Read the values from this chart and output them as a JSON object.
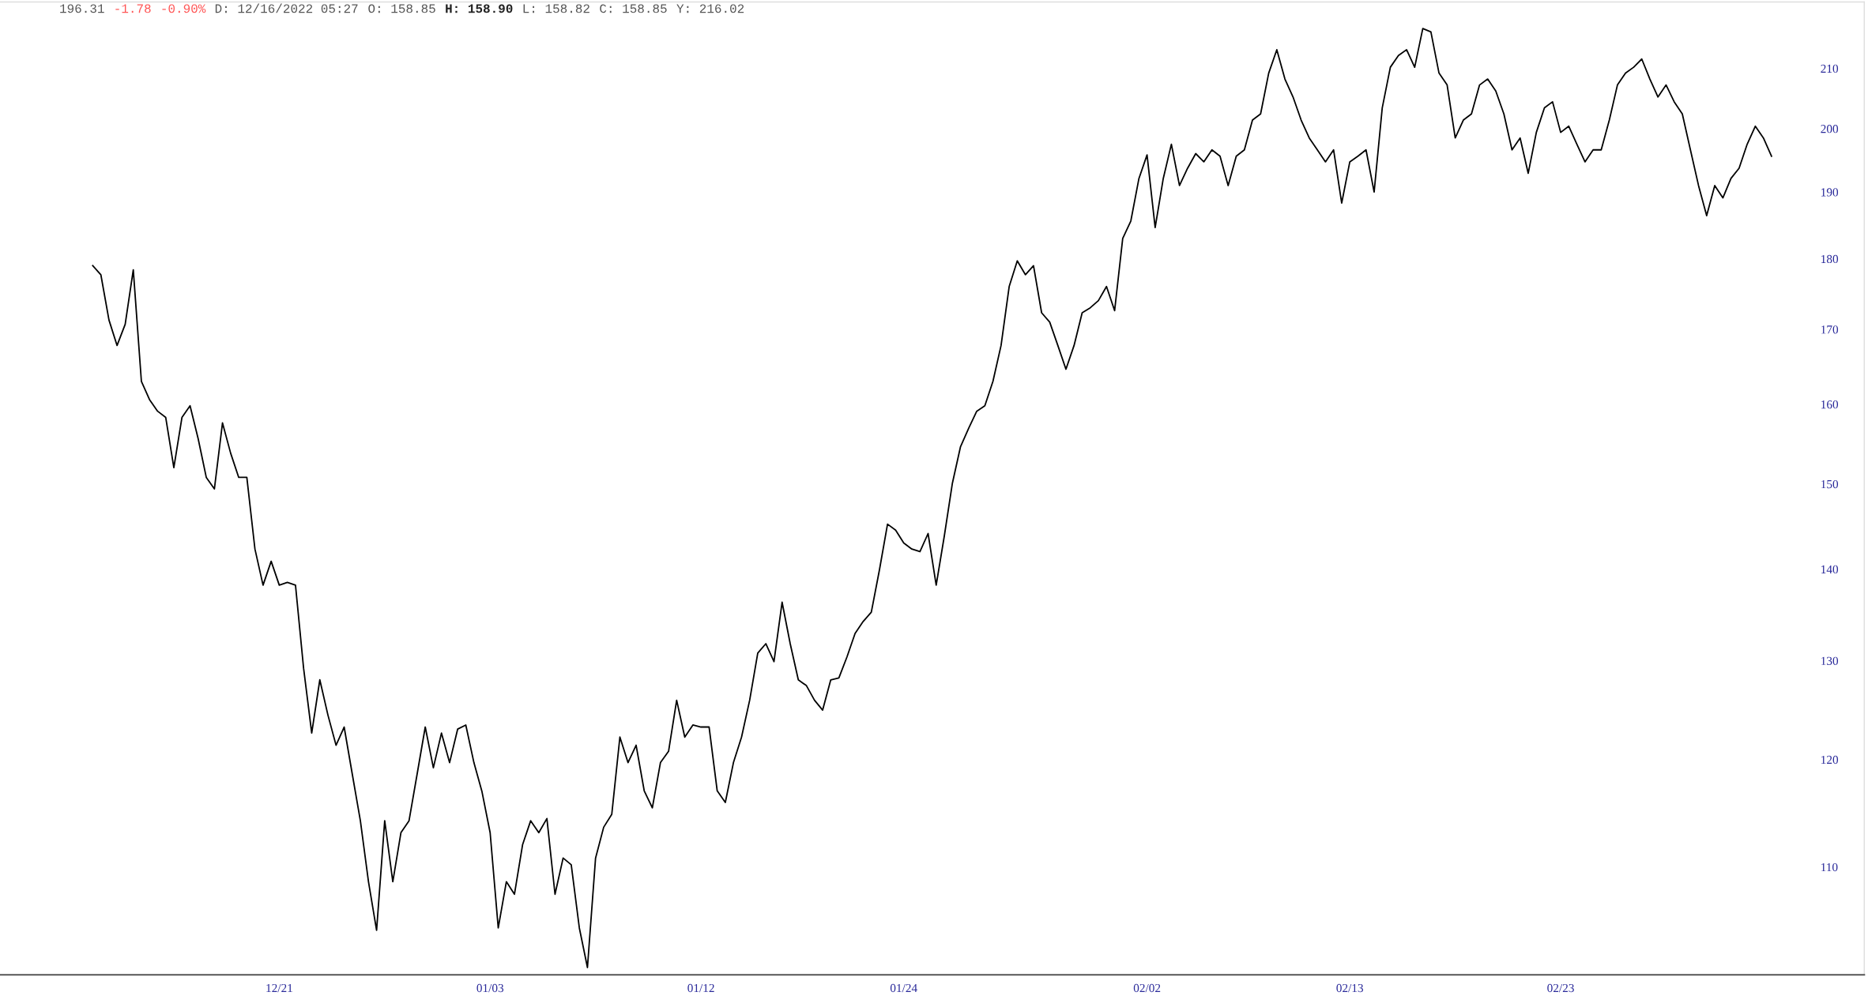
{
  "chart_data": {
    "type": "line",
    "log": "y",
    "grid": false,
    "legend": false,
    "marker": "none",
    "line_style": "solid",
    "annotations": [
      "196.31",
      "-1.78",
      "-0.90%",
      "D: 12/16/2022 05:27",
      "O: 158.85",
      "H: 158.90",
      "L: 158.82",
      "C: 158.85",
      "Y: 216.02"
    ],
    "ylim": [
      100.8,
      221.6
    ],
    "categories": [
      null,
      null,
      null,
      null,
      null,
      null,
      null,
      null,
      null,
      null,
      null,
      null,
      null,
      null,
      null,
      null,
      null,
      null,
      null,
      null,
      null,
      null,
      null,
      "12/21",
      null,
      null,
      null,
      null,
      null,
      null,
      null,
      null,
      null,
      null,
      null,
      null,
      null,
      null,
      null,
      null,
      null,
      null,
      null,
      null,
      null,
      null,
      null,
      null,
      null,
      "01/03",
      null,
      null,
      null,
      null,
      null,
      null,
      null,
      null,
      null,
      null,
      null,
      null,
      null,
      null,
      null,
      null,
      null,
      null,
      null,
      null,
      null,
      null,
      null,
      null,
      null,
      "01/12",
      null,
      null,
      null,
      null,
      null,
      null,
      null,
      null,
      null,
      null,
      null,
      null,
      null,
      null,
      null,
      null,
      null,
      null,
      null,
      null,
      null,
      null,
      null,
      null,
      "01/24",
      null,
      null,
      null,
      null,
      null,
      null,
      null,
      null,
      null,
      null,
      null,
      null,
      null,
      null,
      null,
      null,
      null,
      null,
      null,
      null,
      null,
      null,
      null,
      null,
      null,
      null,
      null,
      null,
      null,
      "02/02",
      null,
      null,
      null,
      null,
      null,
      null,
      null,
      null,
      null,
      null,
      null,
      null,
      null,
      null,
      null,
      null,
      null,
      null,
      null,
      null,
      null,
      null,
      null,
      null,
      "02/13",
      null,
      null,
      null,
      null,
      null,
      null,
      null,
      null,
      null,
      null,
      null,
      null,
      null,
      null,
      null,
      null,
      null,
      null,
      null,
      null,
      null,
      null,
      null,
      null,
      null,
      "02/23",
      null,
      null,
      null,
      null,
      null,
      null,
      null,
      null,
      null,
      null,
      null,
      null,
      null,
      null,
      null,
      null,
      null,
      null,
      null,
      null,
      null,
      null,
      null,
      null,
      null,
      null
    ],
    "yticks": [
      110,
      120,
      130,
      140,
      150,
      160,
      170,
      180,
      190,
      200,
      210
    ],
    "series": [
      {
        "color": "#000000",
        "values": [
          179.0,
          177.7,
          171.3,
          167.8,
          170.7,
          178.4,
          163.0,
          160.6,
          159.1,
          158.3,
          152.0,
          158.3,
          159.8,
          155.6,
          150.8,
          149.4,
          157.6,
          153.8,
          150.8,
          150.8,
          142.3,
          138.2,
          140.9,
          138.2,
          138.5,
          138.2,
          129.2,
          122.6,
          128.0,
          124.4,
          121.4,
          123.2,
          118.6,
          114.2,
          108.7,
          104.5,
          114.2,
          108.7,
          113.1,
          114.2,
          118.6,
          123.2,
          119.2,
          122.6,
          119.7,
          123.0,
          123.4,
          119.7,
          116.9,
          113.1,
          104.7,
          108.7,
          107.6,
          112.0,
          114.2,
          113.1,
          114.4,
          107.6,
          110.8,
          110.2,
          104.7,
          101.4,
          110.8,
          113.6,
          114.8,
          122.2,
          119.7,
          121.4,
          117.0,
          115.4,
          119.7,
          120.8,
          125.9,
          122.2,
          123.4,
          123.2,
          123.2,
          117.0,
          115.9,
          119.7,
          122.2,
          125.9,
          130.8,
          131.8,
          129.9,
          136.3,
          131.8,
          128.0,
          127.4,
          125.9,
          124.9,
          128.0,
          128.2,
          130.4,
          132.9,
          134.2,
          135.2,
          139.9,
          145.2,
          144.5,
          143.0,
          142.3,
          142.0,
          144.1,
          138.2,
          143.8,
          150.1,
          154.6,
          156.9,
          159.1,
          159.8,
          163.0,
          167.8,
          176.0,
          179.7,
          177.7,
          179.0,
          172.3,
          171.0,
          167.8,
          164.6,
          167.8,
          172.3,
          173.0,
          174.0,
          176.0,
          172.6,
          183.0,
          185.6,
          192.1,
          195.8,
          184.6,
          192.1,
          197.5,
          191.0,
          193.7,
          196.0,
          194.7,
          196.6,
          195.6,
          191.0,
          195.6,
          196.6,
          201.4,
          202.4,
          209.2,
          213.2,
          208.2,
          205.2,
          201.4,
          198.5,
          196.6,
          194.7,
          196.6,
          188.3,
          194.7,
          195.6,
          196.6,
          190.0,
          203.4,
          210.2,
          212.2,
          213.2,
          210.2,
          216.9,
          216.3,
          209.2,
          207.2,
          198.5,
          201.4,
          202.4,
          207.2,
          208.2,
          206.2,
          202.4,
          196.6,
          198.5,
          192.9,
          199.4,
          203.4,
          204.4,
          199.4,
          200.4,
          197.5,
          194.7,
          196.6,
          196.6,
          201.4,
          207.2,
          209.2,
          210.2,
          211.6,
          208.2,
          205.2,
          207.2,
          204.4,
          202.4,
          196.6,
          191.0,
          186.4,
          191.0,
          189.1,
          192.1,
          193.7,
          197.5,
          200.4,
          198.5,
          195.6
        ]
      }
    ]
  }
}
